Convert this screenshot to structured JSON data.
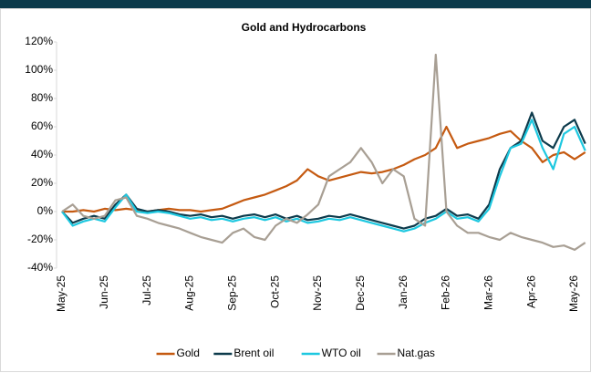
{
  "chart_data": {
    "type": "line",
    "title": "Gold and Hydrocarbons",
    "categories": [
      "May-25",
      null,
      null,
      null,
      "Jun-25",
      null,
      null,
      null,
      "Jul-25",
      null,
      null,
      null,
      "Aug-25",
      null,
      null,
      null,
      "Sep-25",
      null,
      null,
      null,
      "Oct-25",
      null,
      null,
      null,
      "Nov-25",
      null,
      null,
      null,
      "Dec-25",
      null,
      null,
      null,
      "Jan-26",
      null,
      null,
      null,
      "Feb-26",
      null,
      null,
      null,
      "Mar-26",
      null,
      null,
      null,
      "Apr-26",
      null,
      null,
      null,
      "May-26",
      null
    ],
    "series": [
      {
        "name": "Gold",
        "color": "#c55a11",
        "values": [
          0,
          0,
          1,
          0,
          2,
          1,
          2,
          1,
          0,
          1,
          2,
          1,
          1,
          0,
          1,
          2,
          5,
          8,
          10,
          12,
          15,
          18,
          22,
          30,
          25,
          22,
          24,
          26,
          28,
          27,
          28,
          30,
          33,
          37,
          40,
          45,
          60,
          45,
          48,
          50,
          52,
          55,
          57,
          50,
          45,
          35,
          40,
          42,
          37,
          42
        ]
      },
      {
        "name": "Brent oil",
        "color": "#0d3b4c",
        "values": [
          0,
          -8,
          -5,
          -3,
          -5,
          5,
          12,
          2,
          0,
          1,
          0,
          -2,
          -3,
          -2,
          -4,
          -3,
          -5,
          -3,
          -2,
          -4,
          -2,
          -5,
          -3,
          -6,
          -5,
          -3,
          -4,
          -2,
          -4,
          -6,
          -8,
          -10,
          -12,
          -10,
          -5,
          -3,
          2,
          -3,
          -2,
          -5,
          5,
          30,
          45,
          50,
          70,
          50,
          45,
          60,
          65,
          48
        ]
      },
      {
        "name": "WTO oil",
        "color": "#1ec8e0",
        "values": [
          0,
          -10,
          -7,
          -5,
          -7,
          3,
          12,
          0,
          -1,
          0,
          -1,
          -3,
          -5,
          -4,
          -6,
          -5,
          -7,
          -5,
          -4,
          -6,
          -4,
          -7,
          -5,
          -8,
          -7,
          -5,
          -6,
          -4,
          -6,
          -8,
          -10,
          -12,
          -14,
          -12,
          -8,
          -5,
          0,
          -5,
          -4,
          -7,
          2,
          25,
          45,
          48,
          65,
          45,
          30,
          55,
          60,
          43
        ]
      },
      {
        "name": "Nat.gas",
        "color": "#a89f94",
        "values": [
          0,
          5,
          -3,
          -5,
          -3,
          8,
          10,
          -3,
          -5,
          -8,
          -10,
          -12,
          -15,
          -18,
          -20,
          -22,
          -15,
          -12,
          -18,
          -20,
          -10,
          -5,
          -8,
          -2,
          5,
          25,
          30,
          35,
          45,
          35,
          20,
          30,
          25,
          -5,
          -10,
          111,
          0,
          -10,
          -15,
          -15,
          -18,
          -20,
          -15,
          -18,
          -20,
          -22,
          -25,
          -24,
          -27,
          -22
        ]
      }
    ],
    "ylim": [
      -40,
      120
    ],
    "yticks": [
      {
        "value": -40,
        "label": "-40%"
      },
      {
        "value": -20,
        "label": "-20%"
      },
      {
        "value": 0,
        "label": "0%"
      },
      {
        "value": 20,
        "label": "20%"
      },
      {
        "value": 40,
        "label": "40%"
      },
      {
        "value": 60,
        "label": "60%"
      },
      {
        "value": 80,
        "label": "80%"
      },
      {
        "value": 100,
        "label": "100%"
      },
      {
        "value": 120,
        "label": "120%"
      }
    ],
    "grid": false,
    "legend": "bottom"
  }
}
